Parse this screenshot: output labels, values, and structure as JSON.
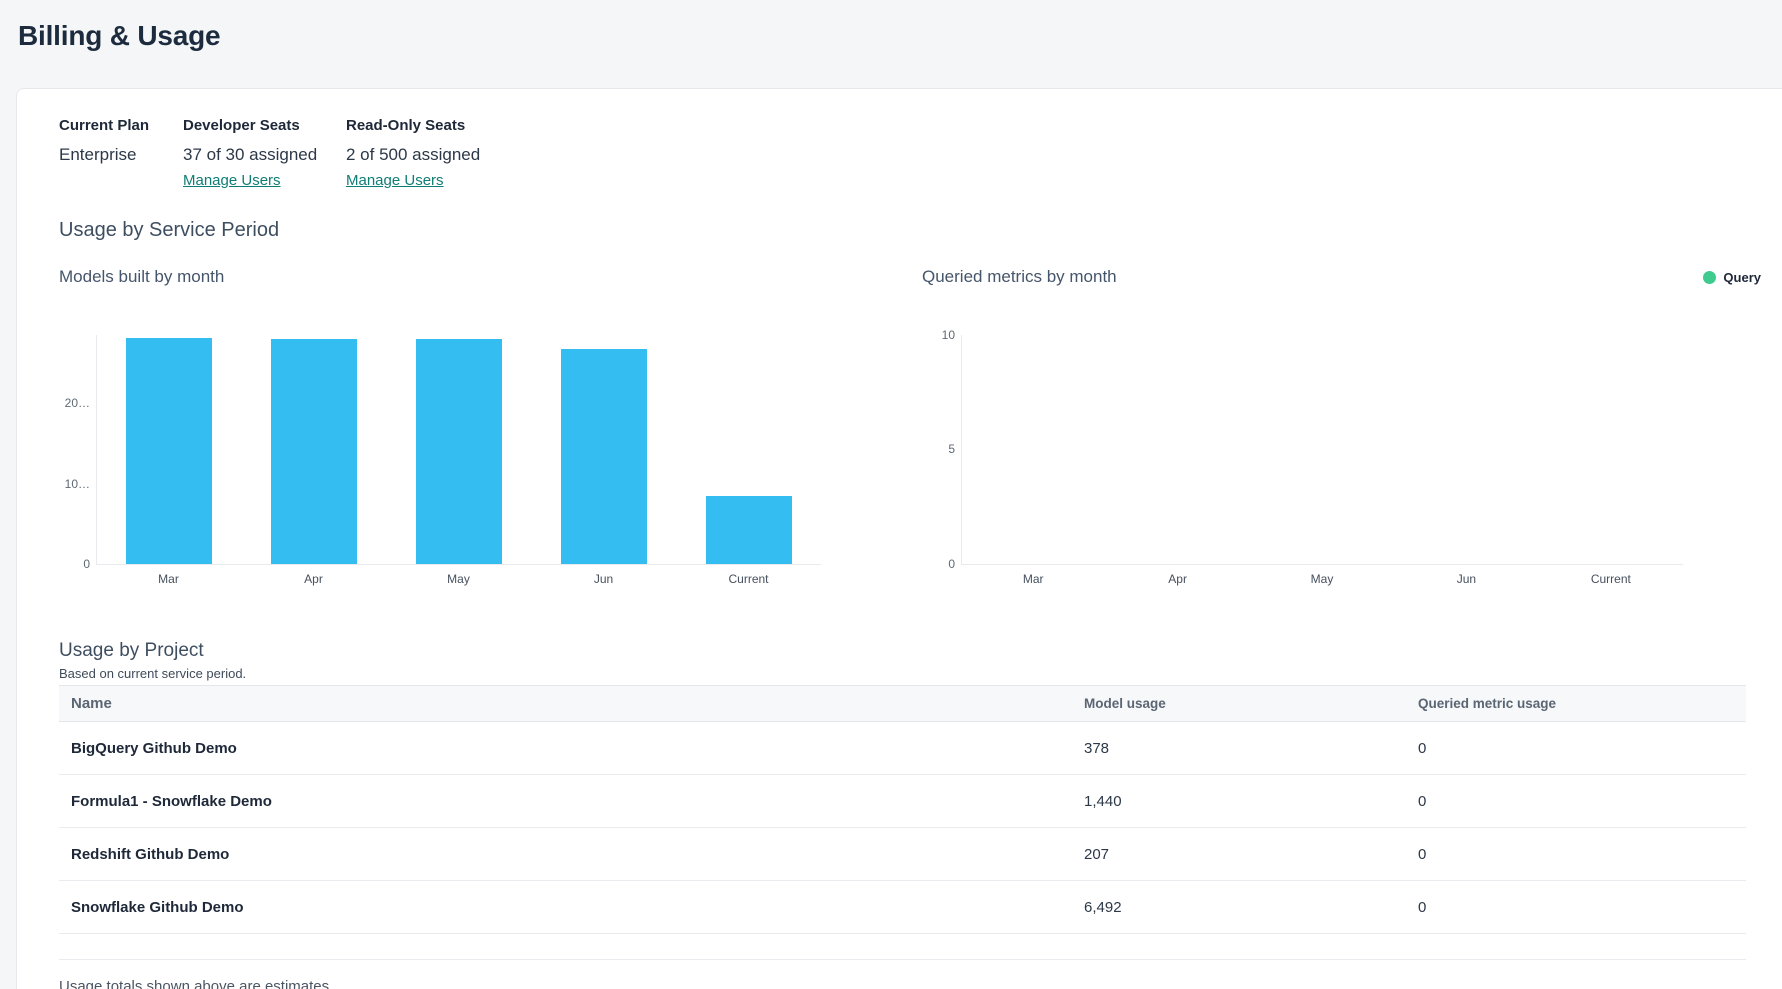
{
  "page": {
    "title": "Billing & Usage"
  },
  "plan": {
    "columns": [
      {
        "label": "Current Plan",
        "value": "Enterprise"
      },
      {
        "label": "Developer Seats",
        "value": "37 of 30 assigned",
        "link": "Manage Users"
      },
      {
        "label": "Read-Only Seats",
        "value": "2 of 500 assigned",
        "link": "Manage Users"
      }
    ]
  },
  "usage_section": {
    "heading": "Usage by Service Period"
  },
  "chart_data": [
    {
      "type": "bar",
      "title": "Models built by month",
      "categories": [
        "Mar",
        "Apr",
        "May",
        "Jun",
        "Current"
      ],
      "values": [
        28100,
        28050,
        27950,
        26800,
        8517
      ],
      "ylim": [
        0,
        28500
      ],
      "yticks": [
        {
          "value": 0,
          "label": "0"
        },
        {
          "value": 10000,
          "label": "10…"
        },
        {
          "value": 20000,
          "label": "20…"
        }
      ],
      "bar_color": "#33bdf0",
      "grid": false,
      "legend": null
    },
    {
      "type": "bar",
      "title": "Queried metrics by month",
      "categories": [
        "Mar",
        "Apr",
        "May",
        "Jun",
        "Current"
      ],
      "values": [
        0,
        0,
        0,
        0,
        0
      ],
      "ylim": [
        0,
        10
      ],
      "yticks": [
        {
          "value": 0,
          "label": "0"
        },
        {
          "value": 5,
          "label": "5"
        },
        {
          "value": 10,
          "label": "10"
        }
      ],
      "bar_color": "#3dcb90",
      "grid": false,
      "legend": {
        "label": "Query",
        "color": "#3dcb90",
        "position": "top-right"
      }
    }
  ],
  "project_section": {
    "heading": "Usage by Project",
    "subheading": "Based on current service period.",
    "table": {
      "columns": [
        "Name",
        "Model usage",
        "Queried metric usage"
      ],
      "rows": [
        {
          "name": "BigQuery Github Demo",
          "model_usage": "378",
          "queried_metric_usage": "0"
        },
        {
          "name": "Formula1 - Snowflake Demo",
          "model_usage": "1,440",
          "queried_metric_usage": "0"
        },
        {
          "name": "Redshift Github Demo",
          "model_usage": "207",
          "queried_metric_usage": "0"
        },
        {
          "name": "Snowflake Github Demo",
          "model_usage": "6,492",
          "queried_metric_usage": "0"
        }
      ]
    },
    "footnote": "Usage totals shown above are estimates."
  },
  "colors": {
    "accent_teal": "#0f7d74",
    "bar_blue": "#33bdf0",
    "legend_green": "#3dcb90",
    "heading_dark": "#1c2b3e"
  }
}
